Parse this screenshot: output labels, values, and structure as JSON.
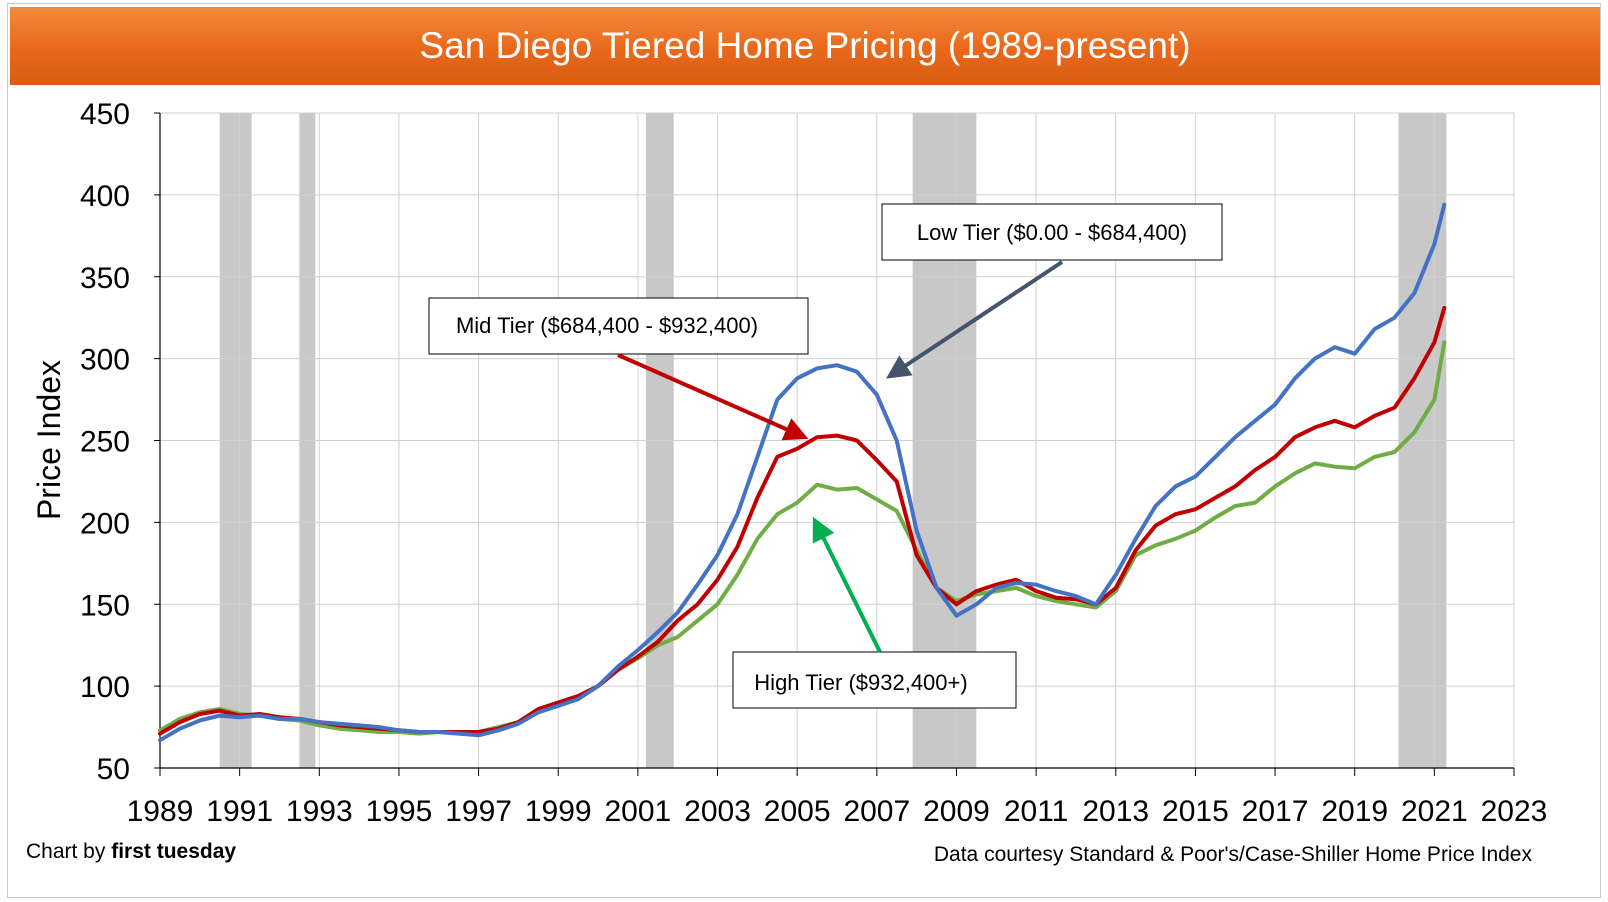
{
  "title": "San Diego Tiered Home Pricing (1989-present)",
  "credit_left_prefix": "Chart by ",
  "credit_left_brand": "first tuesday",
  "credit_right": "Data courtesy Standard & Poor's/Case-Shiller Home Price Index",
  "colors": {
    "low": "#4472c4",
    "mid": "#c00000",
    "high": "#70ad47",
    "recession": "#c8c8c8",
    "arrow_low": "#44546a",
    "arrow_mid": "#c00000",
    "arrow_high": "#00b050"
  },
  "chart_data": {
    "type": "line",
    "title": "San Diego Tiered Home Pricing (1989-present)",
    "xlabel": "",
    "ylabel": "Price Index",
    "xlim": [
      1989,
      2023
    ],
    "ylim": [
      50,
      450
    ],
    "grid": true,
    "x_ticks": [
      "1989",
      "1991",
      "1993",
      "1995",
      "1997",
      "1999",
      "2001",
      "2003",
      "2005",
      "2007",
      "2009",
      "2011",
      "2013",
      "2015",
      "2017",
      "2019",
      "2021",
      "2023"
    ],
    "y_ticks": [
      "50",
      "100",
      "150",
      "200",
      "250",
      "300",
      "350",
      "400",
      "450"
    ],
    "recessions": [
      [
        1990.5,
        1991.3
      ],
      [
        1992.5,
        1992.9
      ],
      [
        2001.2,
        2001.9
      ],
      [
        2007.9,
        2009.5
      ],
      [
        2020.1,
        2021.3
      ]
    ],
    "annotations": [
      {
        "series": "Low Tier",
        "text": "Low Tier ($0.00 - $684,400)"
      },
      {
        "series": "Mid Tier",
        "text": "Mid Tier ($684,400 - $932,400)"
      },
      {
        "series": "High Tier",
        "text": "High Tier ($932,400+)"
      }
    ],
    "x": [
      1989,
      1989.5,
      1990,
      1990.5,
      1991,
      1991.5,
      1992,
      1992.5,
      1993,
      1993.5,
      1994,
      1994.5,
      1995,
      1995.5,
      1996,
      1996.5,
      1997,
      1997.5,
      1998,
      1998.5,
      1999,
      1999.5,
      2000,
      2000.5,
      2001,
      2001.5,
      2002,
      2002.5,
      2003,
      2003.5,
      2004,
      2004.5,
      2005,
      2005.5,
      2006,
      2006.5,
      2007,
      2007.5,
      2008,
      2008.5,
      2009,
      2009.5,
      2010,
      2010.5,
      2011,
      2011.5,
      2012,
      2012.5,
      2013,
      2013.5,
      2014,
      2014.5,
      2015,
      2015.5,
      2016,
      2016.5,
      2017,
      2017.5,
      2018,
      2018.5,
      2019,
      2019.5,
      2020,
      2020.5,
      2021,
      2021.25
    ],
    "series": [
      {
        "name": "Low Tier",
        "values": [
          67,
          74,
          79,
          82,
          81,
          82,
          80,
          80,
          78,
          77,
          76,
          75,
          73,
          72,
          72,
          71,
          70,
          73,
          77,
          84,
          88,
          92,
          100,
          112,
          122,
          133,
          145,
          162,
          180,
          205,
          240,
          275,
          288,
          294,
          296,
          292,
          278,
          250,
          195,
          160,
          143,
          150,
          160,
          163,
          162,
          158,
          155,
          150,
          168,
          190,
          210,
          222,
          228,
          240,
          252,
          262,
          272,
          288,
          300,
          307,
          303,
          318,
          325,
          340,
          370,
          394
        ]
      },
      {
        "name": "Mid Tier",
        "values": [
          71,
          78,
          83,
          85,
          82,
          83,
          81,
          80,
          78,
          76,
          75,
          74,
          73,
          72,
          72,
          72,
          72,
          74,
          78,
          86,
          90,
          94,
          100,
          110,
          118,
          127,
          140,
          150,
          165,
          185,
          215,
          240,
          245,
          252,
          253,
          250,
          238,
          225,
          180,
          160,
          150,
          158,
          162,
          165,
          158,
          154,
          153,
          150,
          160,
          183,
          198,
          205,
          208,
          215,
          222,
          232,
          240,
          252,
          258,
          262,
          258,
          265,
          270,
          288,
          310,
          331
        ]
      },
      {
        "name": "High Tier",
        "values": [
          73,
          80,
          84,
          86,
          83,
          82,
          80,
          79,
          76,
          74,
          73,
          72,
          72,
          71,
          72,
          71,
          72,
          75,
          78,
          84,
          89,
          93,
          100,
          110,
          117,
          125,
          130,
          140,
          150,
          168,
          190,
          205,
          212,
          223,
          220,
          221,
          214,
          207,
          183,
          160,
          152,
          156,
          158,
          160,
          155,
          152,
          150,
          148,
          158,
          180,
          186,
          190,
          195,
          203,
          210,
          212,
          222,
          230,
          236,
          234,
          233,
          240,
          243,
          255,
          275,
          310
        ]
      }
    ]
  }
}
